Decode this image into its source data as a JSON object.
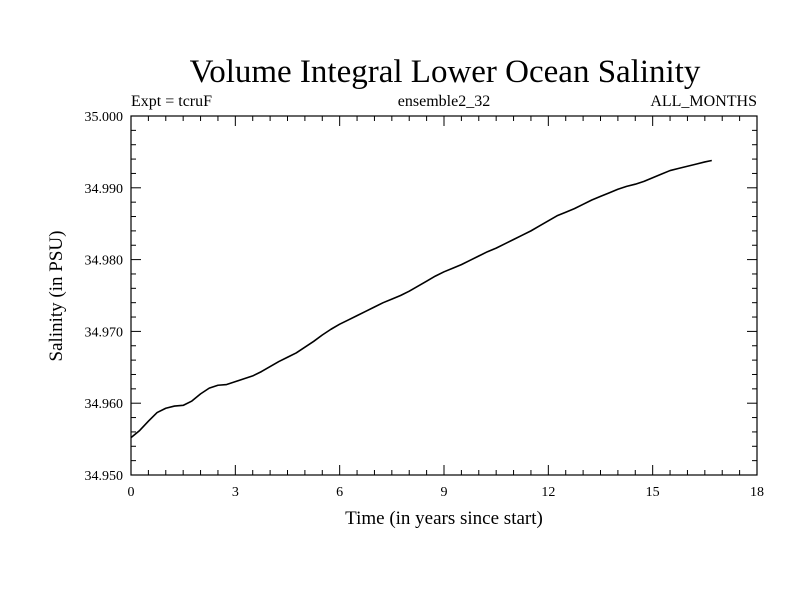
{
  "chart_data": {
    "type": "line",
    "title": "Volume Integral Lower Ocean Salinity",
    "subtitle_left": "Expt = tcruF",
    "subtitle_center": "ensemble2_32",
    "subtitle_right": "ALL_MONTHS",
    "xlabel": "Time (in years since start)",
    "ylabel": "Salinity (in PSU)",
    "xlim": [
      0,
      18
    ],
    "ylim": [
      34.95,
      35.0
    ],
    "x_ticks": [
      0,
      3,
      6,
      9,
      12,
      15,
      18
    ],
    "x_tick_labels": [
      "0",
      "3",
      "6",
      "9",
      "12",
      "15",
      "18"
    ],
    "y_ticks": [
      34.95,
      34.96,
      34.97,
      34.98,
      34.99,
      35.0
    ],
    "y_tick_labels": [
      "34.950",
      "34.960",
      "34.970",
      "34.980",
      "34.990",
      "35.000"
    ],
    "grid": false,
    "series": [
      {
        "color": "#000000",
        "x": [
          0,
          0.25,
          0.5,
          0.75,
          1.0,
          1.25,
          1.5,
          1.75,
          2.0,
          2.25,
          2.5,
          2.75,
          3.0,
          3.25,
          3.5,
          3.75,
          4.0,
          4.25,
          4.5,
          4.75,
          5.0,
          5.25,
          5.5,
          5.75,
          6.0,
          6.25,
          6.5,
          6.75,
          7.0,
          7.25,
          7.5,
          7.75,
          8.0,
          8.25,
          8.5,
          8.75,
          9.0,
          9.25,
          9.5,
          9.75,
          10.0,
          10.25,
          10.5,
          10.75,
          11.0,
          11.25,
          11.5,
          11.75,
          12.0,
          12.25,
          12.5,
          12.75,
          13.0,
          13.25,
          13.5,
          13.75,
          14.0,
          14.25,
          14.5,
          14.75,
          15.0,
          15.25,
          15.5,
          15.75,
          16.0,
          16.25,
          16.5,
          16.7
        ],
        "y": [
          34.9552,
          34.9562,
          34.9575,
          34.9587,
          34.9593,
          34.9596,
          34.9597,
          34.9603,
          34.9613,
          34.9621,
          34.9625,
          34.9626,
          34.963,
          34.9634,
          34.9638,
          34.9644,
          34.9651,
          34.9658,
          34.9664,
          34.967,
          34.9678,
          34.9686,
          34.9695,
          34.9703,
          34.971,
          34.9716,
          34.9722,
          34.9728,
          34.9734,
          34.974,
          34.9745,
          34.975,
          34.9756,
          34.9763,
          34.977,
          34.9777,
          34.9783,
          34.9788,
          34.9793,
          34.9799,
          34.9805,
          34.9811,
          34.9816,
          34.9822,
          34.9828,
          34.9834,
          34.984,
          34.9847,
          34.9854,
          34.9861,
          34.9866,
          34.9871,
          34.9877,
          34.9883,
          34.9888,
          34.9893,
          34.9898,
          34.9902,
          34.9905,
          34.9909,
          34.9914,
          34.9919,
          34.9924,
          34.9927,
          34.993,
          34.9933,
          34.9936,
          34.9938
        ]
      }
    ]
  }
}
